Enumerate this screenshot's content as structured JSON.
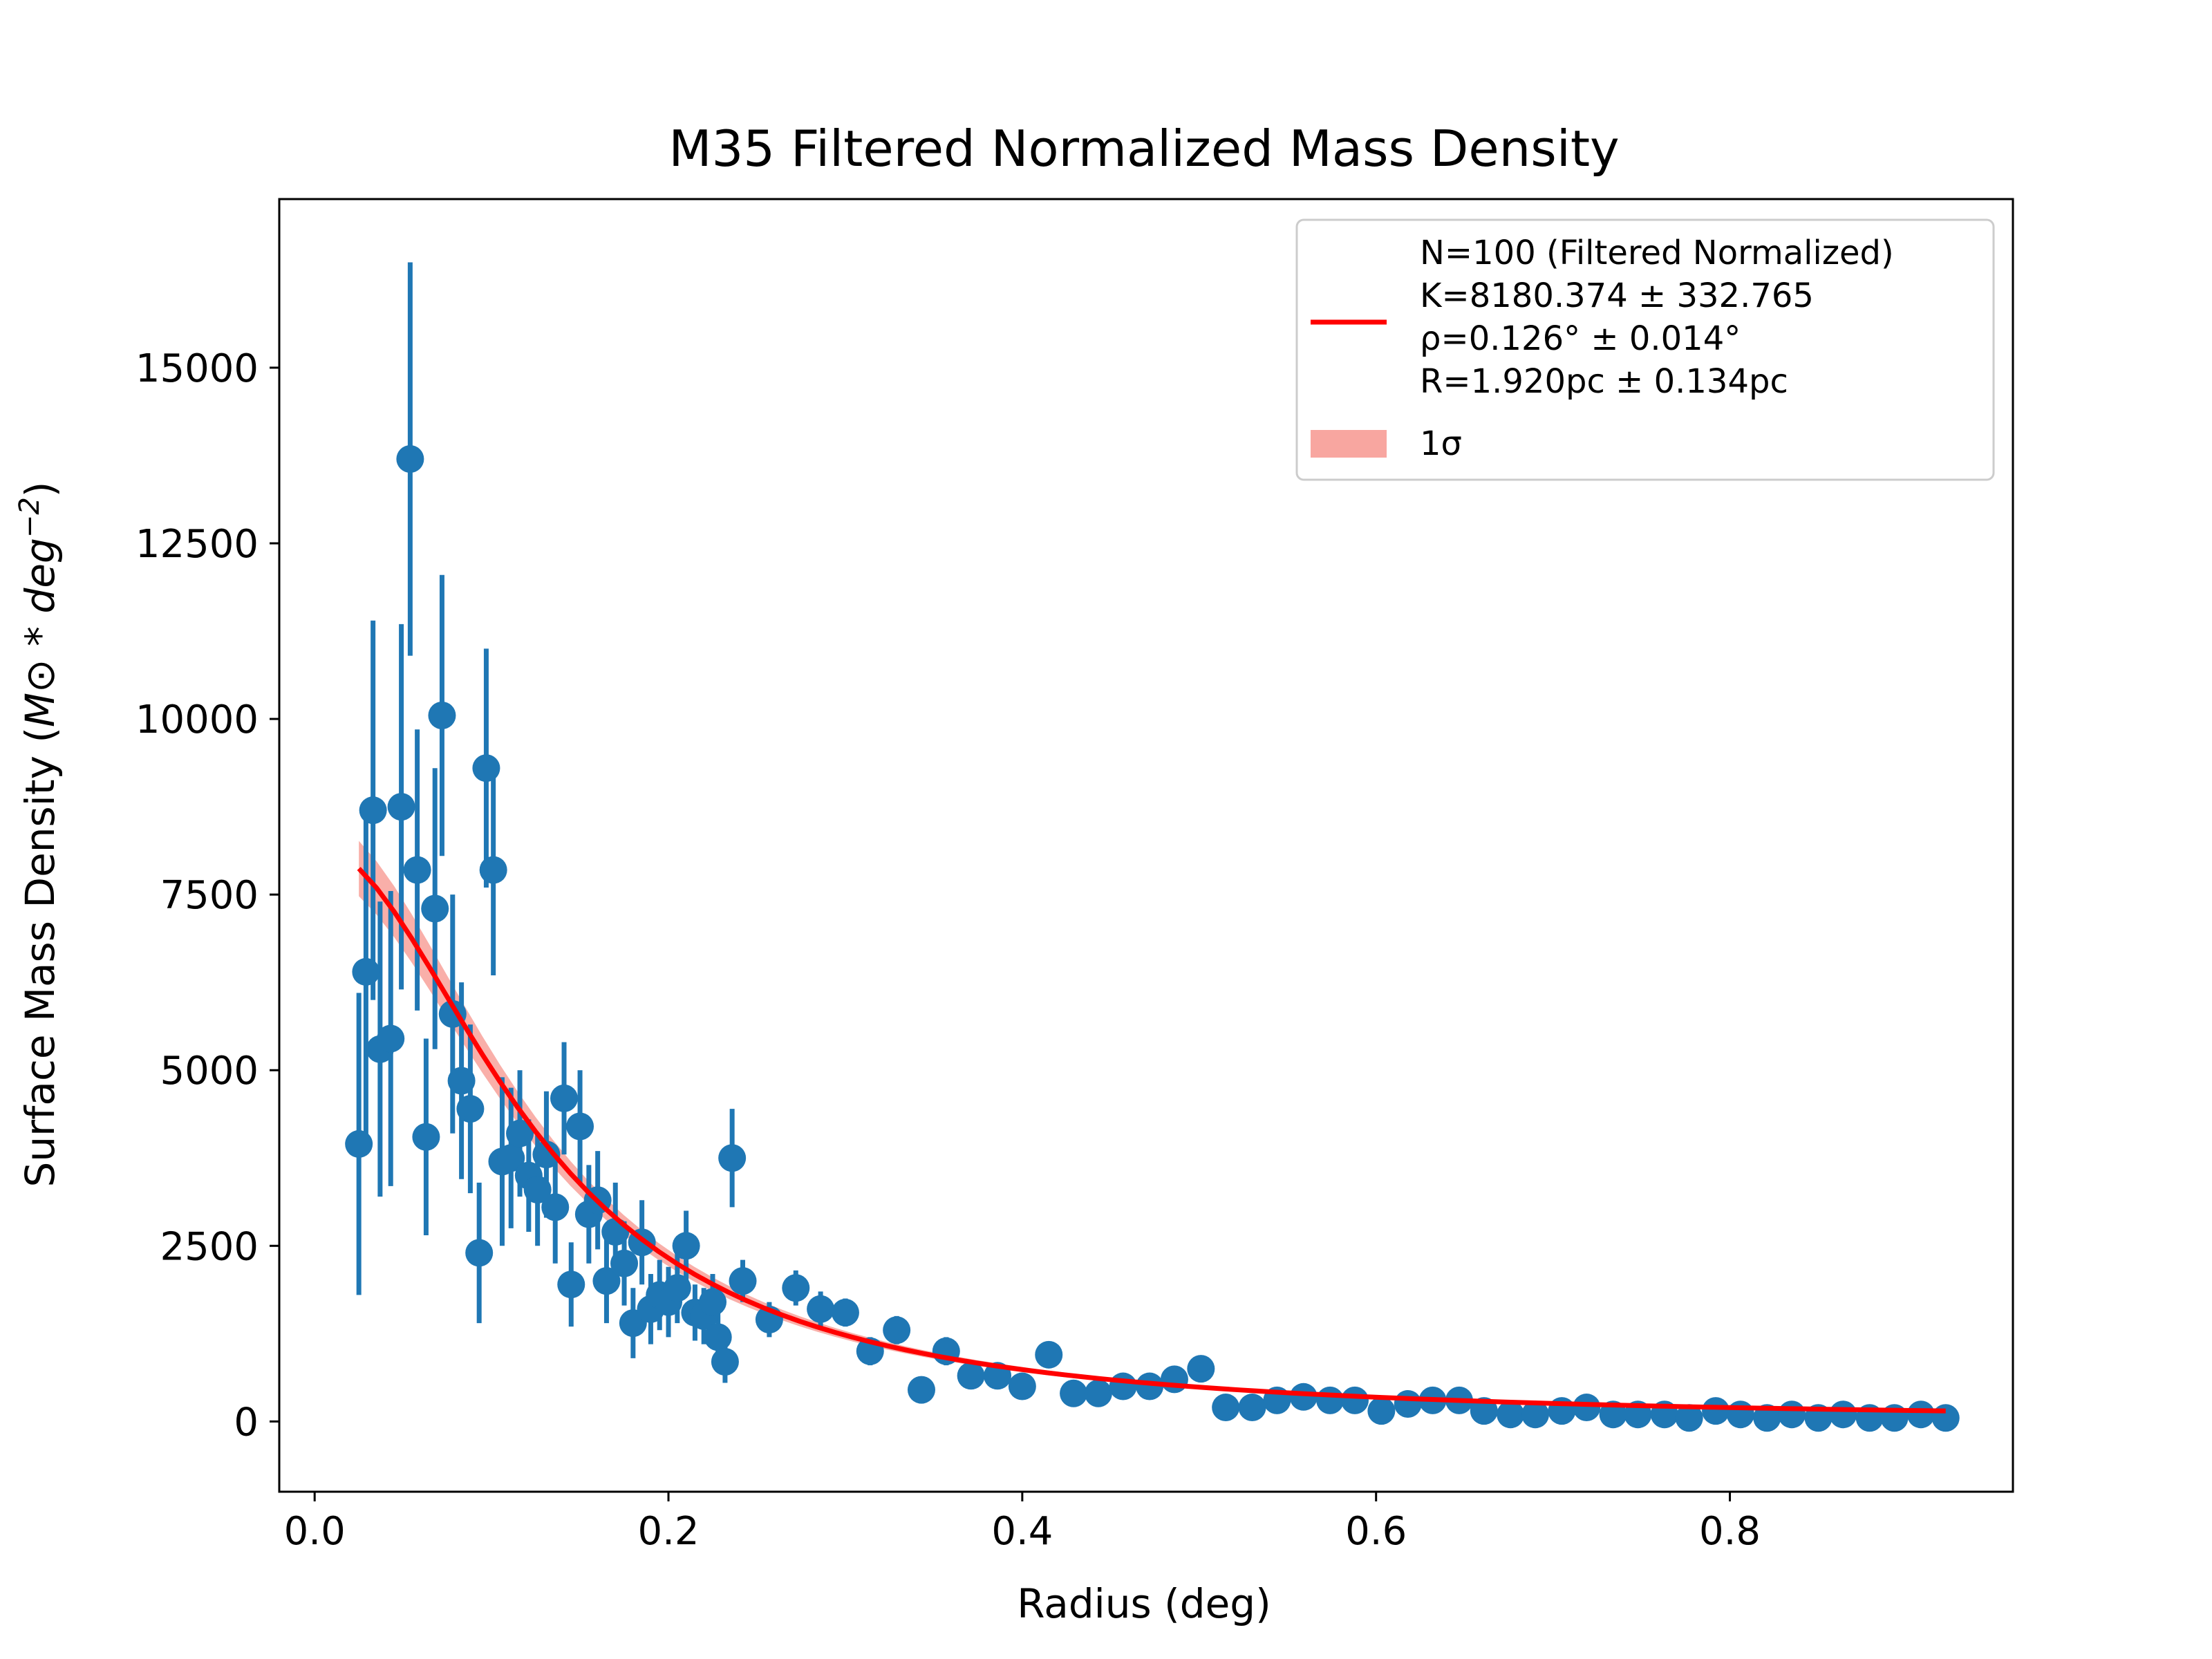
{
  "chart_data": {
    "type": "scatter",
    "title": "M35 Filtered Normalized Mass Density",
    "xlabel": "Radius (deg)",
    "ylabel_main": "Surface Mass Density (",
    "ylabel_math": "M⊙ * deg",
    "ylabel_sup": "−2",
    "ylabel_close": ")",
    "xlim": [
      -0.02,
      0.96
    ],
    "ylim": [
      -1000,
      17400
    ],
    "xticks": [
      0.0,
      0.2,
      0.4,
      0.6,
      0.8
    ],
    "xtick_labels": [
      "0.0",
      "0.2",
      "0.4",
      "0.6",
      "0.8"
    ],
    "yticks": [
      0,
      2500,
      5000,
      7500,
      10000,
      12500,
      15000
    ],
    "ytick_labels": [
      "0",
      "2500",
      "5000",
      "7500",
      "10000",
      "12500",
      "15000"
    ],
    "colors": {
      "points": "#1f77b4",
      "fit": "#ff0000",
      "band": "#f8a6a0"
    },
    "legend": {
      "placement": "upper right",
      "fit_lines": [
        "N=100 (Filtered Normalized)",
        "K=8180.374 ± 332.765",
        "ρ=0.126° ± 0.014°",
        "R=1.920pc ± 0.134pc"
      ],
      "band_label": "1σ"
    },
    "fit": {
      "K": 8180.374,
      "rho": 0.126,
      "x_range": [
        0.025,
        0.922
      ],
      "band_fraction": 0.05
    },
    "series": [
      {
        "points": [
          [
            0.025,
            3950,
            2150
          ],
          [
            0.029,
            6400,
            2400
          ],
          [
            0.033,
            8700,
            2700
          ],
          [
            0.037,
            5300,
            2100
          ],
          [
            0.043,
            5450,
            2100
          ],
          [
            0.049,
            8750,
            2600
          ],
          [
            0.054,
            13700,
            2800
          ],
          [
            0.058,
            7850,
            2000
          ],
          [
            0.063,
            4050,
            1400
          ],
          [
            0.068,
            7300,
            2000
          ],
          [
            0.072,
            10050,
            2000
          ],
          [
            0.078,
            5800,
            1700
          ],
          [
            0.083,
            4850,
            1400
          ],
          [
            0.088,
            4450,
            1200
          ],
          [
            0.093,
            2400,
            1000
          ],
          [
            0.097,
            9300,
            1700
          ],
          [
            0.101,
            7850,
            1500
          ],
          [
            0.106,
            3700,
            1200
          ],
          [
            0.111,
            3750,
            1000
          ],
          [
            0.116,
            4100,
            900
          ],
          [
            0.121,
            3500,
            800
          ],
          [
            0.126,
            3300,
            800
          ],
          [
            0.131,
            3800,
            900
          ],
          [
            0.136,
            3050,
            800
          ],
          [
            0.141,
            4600,
            800
          ],
          [
            0.145,
            1950,
            600
          ],
          [
            0.15,
            4200,
            800
          ],
          [
            0.155,
            2950,
            700
          ],
          [
            0.16,
            3150,
            700
          ],
          [
            0.165,
            2000,
            600
          ],
          [
            0.17,
            2700,
            700
          ],
          [
            0.175,
            2250,
            600
          ],
          [
            0.18,
            1400,
            500
          ],
          [
            0.185,
            2550,
            600
          ],
          [
            0.19,
            1600,
            500
          ],
          [
            0.195,
            1800,
            500
          ],
          [
            0.2,
            1700,
            500
          ],
          [
            0.205,
            1900,
            500
          ],
          [
            0.21,
            2500,
            500
          ],
          [
            0.215,
            1550,
            400
          ],
          [
            0.22,
            1500,
            400
          ],
          [
            0.225,
            1700,
            400
          ],
          [
            0.228,
            1200,
            400
          ],
          [
            0.232,
            850,
            300
          ],
          [
            0.236,
            3750,
            700
          ],
          [
            0.242,
            2000,
            300
          ],
          [
            0.257,
            1450,
            250
          ],
          [
            0.272,
            1900,
            250
          ],
          [
            0.286,
            1600,
            250
          ],
          [
            0.3,
            1550,
            200
          ],
          [
            0.314,
            1000,
            200
          ],
          [
            0.329,
            1300,
            200
          ],
          [
            0.343,
            450,
            150
          ],
          [
            0.357,
            1000,
            200
          ],
          [
            0.371,
            650,
            150
          ],
          [
            0.386,
            650,
            150
          ],
          [
            0.4,
            500,
            150
          ],
          [
            0.415,
            950,
            150
          ],
          [
            0.429,
            400,
            100
          ],
          [
            0.443,
            400,
            100
          ],
          [
            0.457,
            500,
            100
          ],
          [
            0.472,
            500,
            100
          ],
          [
            0.486,
            600,
            100
          ],
          [
            0.501,
            750,
            100
          ],
          [
            0.515,
            200,
            80
          ],
          [
            0.53,
            200,
            80
          ],
          [
            0.544,
            300,
            80
          ],
          [
            0.559,
            350,
            80
          ],
          [
            0.574,
            300,
            80
          ],
          [
            0.588,
            300,
            80
          ],
          [
            0.603,
            150,
            60
          ],
          [
            0.618,
            250,
            60
          ],
          [
            0.632,
            300,
            60
          ],
          [
            0.647,
            300,
            60
          ],
          [
            0.661,
            150,
            60
          ],
          [
            0.676,
            100,
            60
          ],
          [
            0.69,
            100,
            60
          ],
          [
            0.705,
            150,
            60
          ],
          [
            0.719,
            200,
            60
          ],
          [
            0.734,
            100,
            50
          ],
          [
            0.748,
            100,
            50
          ],
          [
            0.763,
            100,
            50
          ],
          [
            0.777,
            50,
            50
          ],
          [
            0.792,
            150,
            50
          ],
          [
            0.806,
            100,
            50
          ],
          [
            0.821,
            50,
            50
          ],
          [
            0.835,
            100,
            50
          ],
          [
            0.85,
            50,
            50
          ],
          [
            0.864,
            100,
            50
          ],
          [
            0.879,
            50,
            50
          ],
          [
            0.893,
            50,
            50
          ],
          [
            0.908,
            100,
            50
          ],
          [
            0.922,
            50,
            50
          ]
        ]
      }
    ]
  }
}
